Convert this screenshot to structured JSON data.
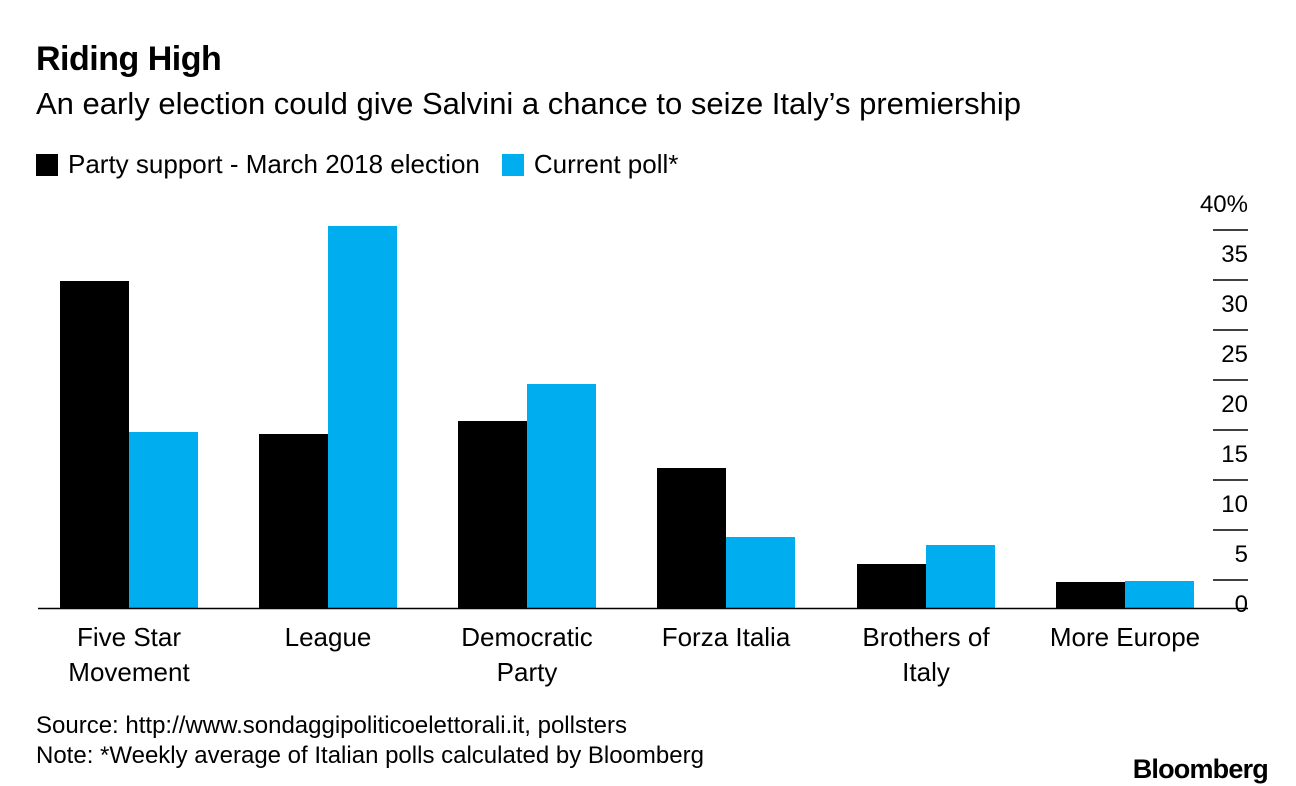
{
  "title": "Riding High",
  "subtitle": "An early election could give Salvini a chance to seize Italy’s premiership",
  "legend": [
    {
      "label": "Party support - March 2018 election",
      "color": "#000000"
    },
    {
      "label": "Current poll*",
      "color": "#00adef"
    }
  ],
  "chart_data": {
    "type": "bar",
    "title": "Riding High",
    "categories": [
      [
        "Five Star",
        "Movement"
      ],
      [
        "League"
      ],
      [
        "Democratic",
        "Party"
      ],
      [
        "Forza Italia"
      ],
      [
        "Brothers of",
        "Italy"
      ],
      [
        "More Europe"
      ]
    ],
    "series": [
      {
        "name": "Party support - March 2018 election",
        "color": "#000000",
        "values": [
          32.7,
          17.4,
          18.7,
          14.0,
          4.4,
          2.6
        ]
      },
      {
        "name": "Current poll*",
        "color": "#00adef",
        "values": [
          17.6,
          38.2,
          22.4,
          7.1,
          6.3,
          2.7
        ]
      }
    ],
    "yticks": [
      "40%",
      "35",
      "30",
      "25",
      "20",
      "15",
      "10",
      "5",
      "0"
    ],
    "ytick_values": [
      40,
      35,
      30,
      25,
      20,
      15,
      10,
      5,
      0
    ],
    "ylim": [
      0,
      40
    ],
    "xlabel": "",
    "ylabel": "",
    "axis_side": "right"
  },
  "footnotes": {
    "source": "Source: http://www.sondaggipoliticoelettorali.it, pollsters",
    "note": "Note: *Weekly average of Italian polls calculated by Bloomberg"
  },
  "brand": "Bloomberg"
}
